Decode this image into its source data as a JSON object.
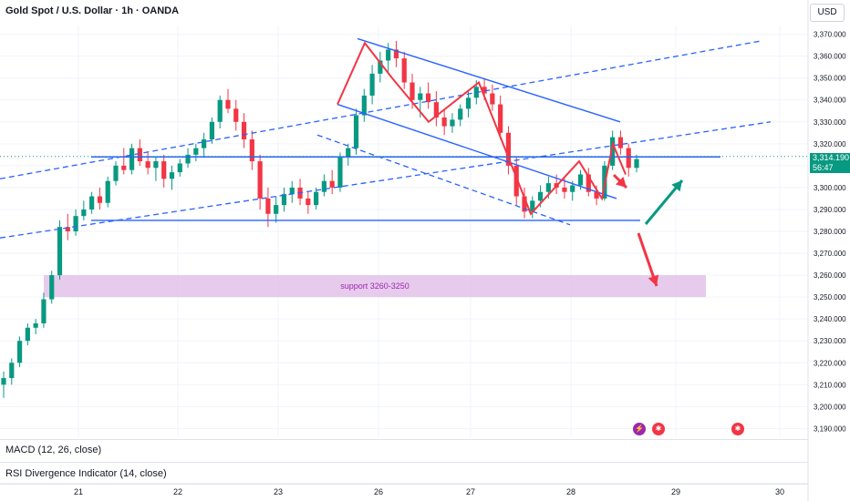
{
  "header": {
    "title": "Gold Spot / U.S. Dollar · 1h · OANDA",
    "currency_label": "USD"
  },
  "indicators": [
    {
      "label": "MACD (12, 26, close)"
    },
    {
      "label": "RSI Divergence Indicator (14, close)"
    }
  ],
  "last_price": {
    "price": "3,314.190",
    "countdown": "56:47"
  },
  "support_zone": {
    "label": "support 3260-3250",
    "top": 3260,
    "bottom": 3250
  },
  "colors": {
    "up": "#089981",
    "down": "#f23645",
    "trend_line": "#2962ff",
    "pattern": "#f23645",
    "zone": "#e1bee7",
    "zone_text": "#9c27b0"
  },
  "events": [
    {
      "icon": "lightning-icon"
    },
    {
      "icon": "us-flag-icon"
    },
    {
      "icon": "us-flag-icon"
    }
  ],
  "chart_data": {
    "type": "candlestick",
    "instrument": "Gold Spot / U.S. Dollar",
    "timeframe": "1h",
    "x_ticks": [
      "21",
      "22",
      "23",
      "26",
      "27",
      "28",
      "29",
      "30"
    ],
    "y_ticks": [
      "3,370.000",
      "3,360.000",
      "3,350.000",
      "3,340.000",
      "3,330.000",
      "3,320.000",
      "3,310.000",
      "3,300.000",
      "3,290.000",
      "3,280.000",
      "3,270.000",
      "3,260.000",
      "3,250.000",
      "3,240.000",
      "3,230.000",
      "3,220.000",
      "3,210.000",
      "3,200.000",
      "3,190.000"
    ],
    "ylim": [
      3186,
      3374
    ],
    "candles": [
      [
        3210,
        3216,
        3204,
        3213
      ],
      [
        3213,
        3222,
        3210,
        3220
      ],
      [
        3220,
        3232,
        3218,
        3230
      ],
      [
        3230,
        3238,
        3228,
        3236
      ],
      [
        3236,
        3240,
        3233,
        3238
      ],
      [
        3238,
        3252,
        3236,
        3249
      ],
      [
        3249,
        3262,
        3247,
        3260
      ],
      [
        3260,
        3285,
        3258,
        3282
      ],
      [
        3282,
        3288,
        3276,
        3280
      ],
      [
        3280,
        3290,
        3278,
        3287
      ],
      [
        3287,
        3294,
        3285,
        3290
      ],
      [
        3290,
        3298,
        3288,
        3296
      ],
      [
        3296,
        3300,
        3290,
        3293
      ],
      [
        3293,
        3305,
        3291,
        3303
      ],
      [
        3303,
        3312,
        3301,
        3310
      ],
      [
        3310,
        3318,
        3306,
        3308
      ],
      [
        3308,
        3320,
        3306,
        3318
      ],
      [
        3318,
        3322,
        3310,
        3312
      ],
      [
        3312,
        3316,
        3306,
        3309
      ],
      [
        3309,
        3314,
        3303,
        3312
      ],
      [
        3312,
        3315,
        3300,
        3304
      ],
      [
        3304,
        3310,
        3299,
        3307
      ],
      [
        3307,
        3313,
        3305,
        3311
      ],
      [
        3311,
        3318,
        3309,
        3315
      ],
      [
        3315,
        3320,
        3312,
        3318
      ],
      [
        3318,
        3325,
        3314,
        3322
      ],
      [
        3322,
        3332,
        3320,
        3330
      ],
      [
        3330,
        3342,
        3327,
        3340
      ],
      [
        3340,
        3345,
        3334,
        3336
      ],
      [
        3336,
        3340,
        3326,
        3330
      ],
      [
        3330,
        3334,
        3318,
        3322
      ],
      [
        3322,
        3326,
        3308,
        3312
      ],
      [
        3312,
        3315,
        3290,
        3295
      ],
      [
        3295,
        3300,
        3282,
        3288
      ],
      [
        3288,
        3296,
        3284,
        3292
      ],
      [
        3292,
        3300,
        3289,
        3297
      ],
      [
        3297,
        3303,
        3293,
        3300
      ],
      [
        3300,
        3304,
        3292,
        3295
      ],
      [
        3295,
        3298,
        3288,
        3292
      ],
      [
        3292,
        3300,
        3290,
        3298
      ],
      [
        3298,
        3306,
        3296,
        3303
      ],
      [
        3303,
        3308,
        3297,
        3300
      ],
      [
        3300,
        3316,
        3298,
        3314
      ],
      [
        3314,
        3320,
        3310,
        3318
      ],
      [
        3318,
        3336,
        3315,
        3333
      ],
      [
        3333,
        3345,
        3330,
        3342
      ],
      [
        3342,
        3356,
        3338,
        3352
      ],
      [
        3352,
        3362,
        3348,
        3358
      ],
      [
        3358,
        3366,
        3352,
        3363
      ],
      [
        3363,
        3367,
        3355,
        3359
      ],
      [
        3359,
        3362,
        3345,
        3348
      ],
      [
        3348,
        3352,
        3336,
        3340
      ],
      [
        3340,
        3346,
        3332,
        3343
      ],
      [
        3343,
        3348,
        3336,
        3339
      ],
      [
        3339,
        3344,
        3328,
        3332
      ],
      [
        3332,
        3336,
        3324,
        3328
      ],
      [
        3328,
        3334,
        3325,
        3331
      ],
      [
        3331,
        3338,
        3328,
        3336
      ],
      [
        3336,
        3344,
        3332,
        3341
      ],
      [
        3341,
        3349,
        3338,
        3346
      ],
      [
        3346,
        3350,
        3340,
        3343
      ],
      [
        3343,
        3347,
        3335,
        3338
      ],
      [
        3338,
        3342,
        3322,
        3325
      ],
      [
        3325,
        3328,
        3306,
        3310
      ],
      [
        3310,
        3314,
        3292,
        3296
      ],
      [
        3296,
        3300,
        3286,
        3289
      ],
      [
        3289,
        3296,
        3286,
        3294
      ],
      [
        3294,
        3301,
        3291,
        3298
      ],
      [
        3298,
        3305,
        3295,
        3302
      ],
      [
        3302,
        3306,
        3297,
        3300
      ],
      [
        3300,
        3304,
        3295,
        3298
      ],
      [
        3298,
        3303,
        3294,
        3301
      ],
      [
        3301,
        3308,
        3299,
        3306
      ],
      [
        3306,
        3309,
        3296,
        3298
      ],
      [
        3298,
        3301,
        3292,
        3295
      ],
      [
        3295,
        3312,
        3294,
        3310
      ],
      [
        3310,
        3326,
        3308,
        3323
      ],
      [
        3323,
        3326,
        3315,
        3318
      ],
      [
        3318,
        3320,
        3305,
        3309
      ],
      [
        3309,
        3315,
        3307,
        3313
      ]
    ],
    "annotations": {
      "horizontal_levels": [
        3314,
        3285
      ],
      "channel_upper": [
        [
          3366,
          3330
        ]
      ],
      "channel_lower": [
        [
          3338,
          3296
        ]
      ],
      "pattern": [
        3338,
        3366,
        3350,
        3330,
        3348,
        3288,
        3312,
        3295,
        3320,
        3306
      ]
    }
  }
}
